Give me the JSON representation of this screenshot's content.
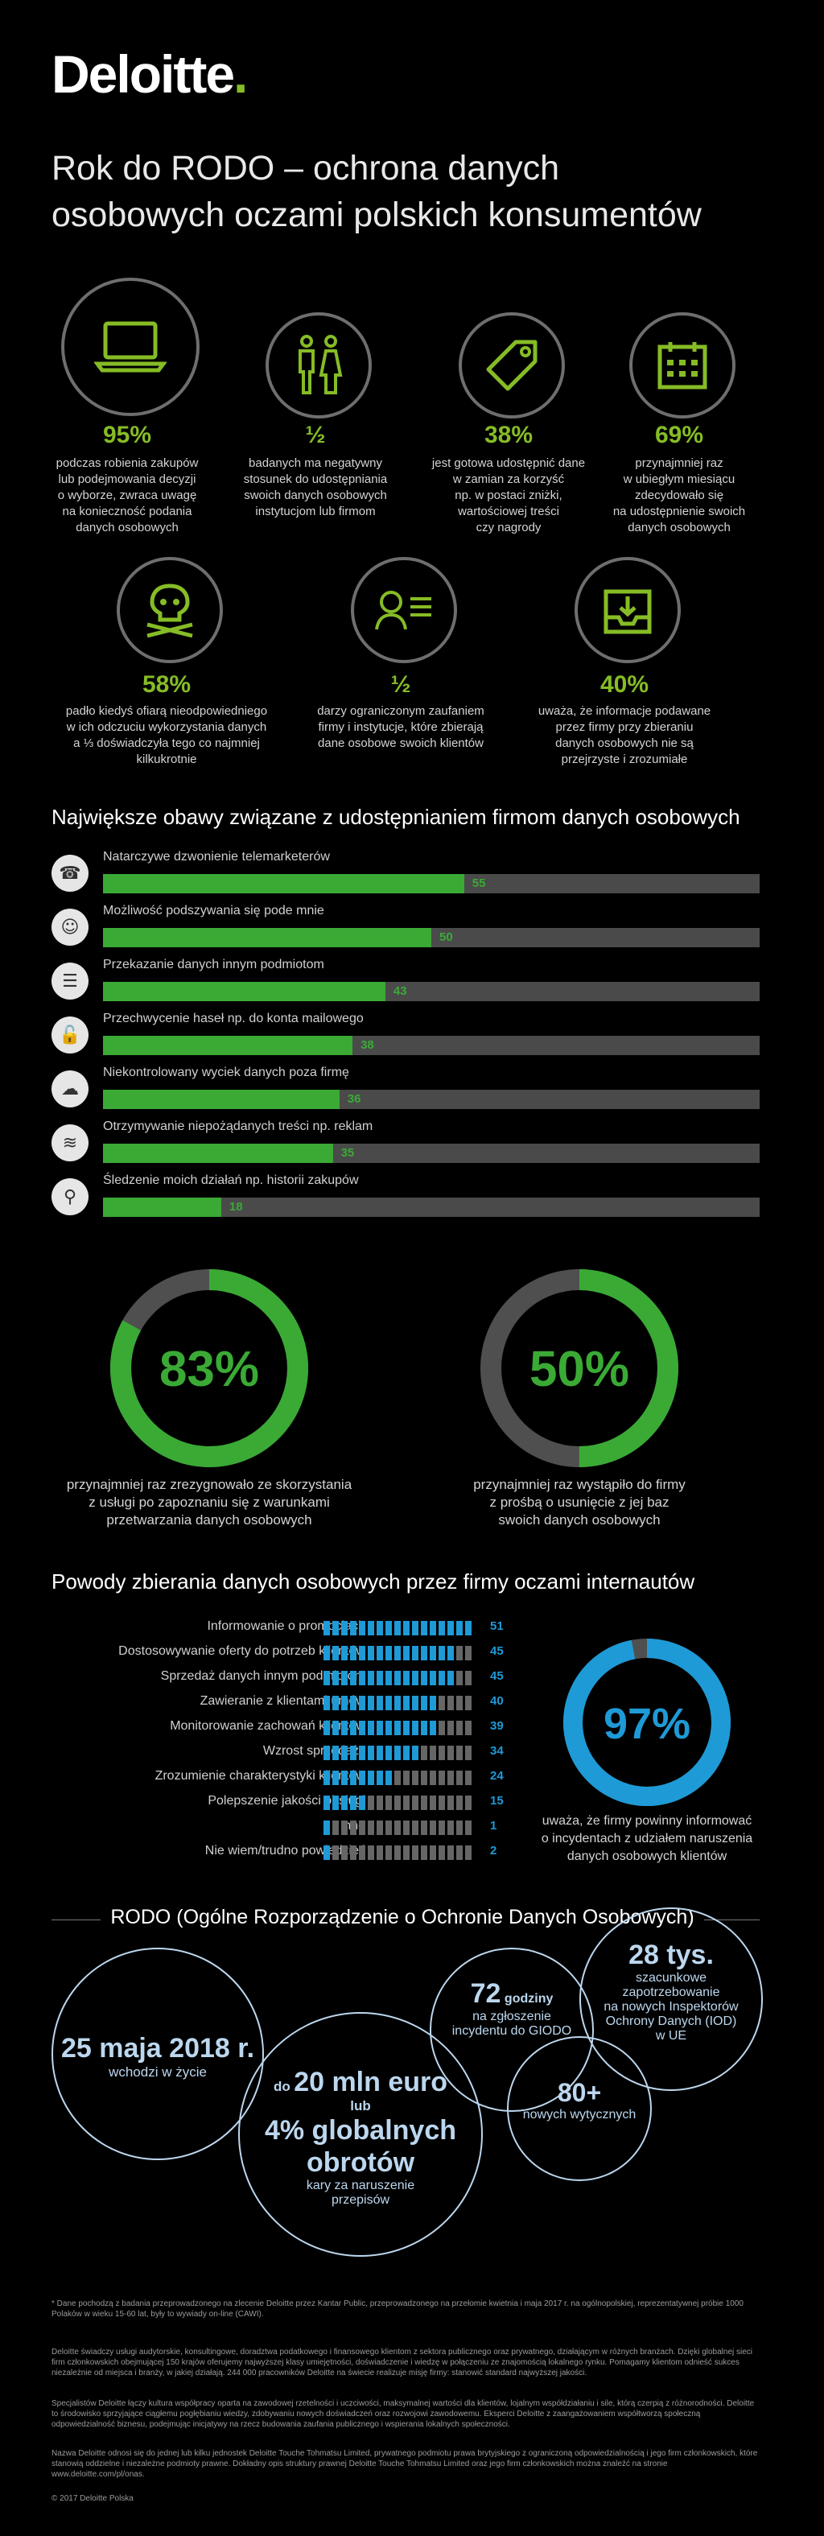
{
  "logo": {
    "text": "Deloitte",
    "dot": "."
  },
  "title": {
    "line1": "Rok do RODO – ochrona danych",
    "line2": "osobowych oczami polskich konsumentów"
  },
  "colors": {
    "green": "#86bc25",
    "bar_green": "#3aaa35",
    "blue": "#1e9ad6",
    "grey": "#4a4a4a"
  },
  "stats_row1": [
    {
      "icon": "laptop-icon",
      "value": "95%",
      "desc": [
        "podczas robienia zakupów",
        "lub podejmowania decyzji",
        "o wyborze, zwraca uwagę",
        "na konieczność podania",
        "danych osobowych"
      ]
    },
    {
      "icon": "people-icon",
      "value": "½",
      "desc": [
        "badanych ma negatywny",
        "stosunek do udostępniania",
        "swoich danych osobowych",
        "instytucjom lub firmom"
      ]
    },
    {
      "icon": "tag-icon",
      "value": "38%",
      "desc": [
        "jest gotowa udostępnić dane",
        "w zamian za korzyść",
        "np. w postaci zniżki,",
        "wartościowej treści",
        "czy nagrody"
      ]
    },
    {
      "icon": "calendar-icon",
      "value": "69%",
      "desc": [
        "przynajmniej raz",
        "w ubiegłym miesiącu",
        "zdecydowało się",
        "na udostępnienie swoich",
        "danych osobowych"
      ]
    }
  ],
  "stats_row2": [
    {
      "icon": "skull-icon",
      "value": "58%",
      "desc": [
        "padło kiedyś ofiarą nieodpowiedniego",
        "w ich odczuciu wykorzystania danych",
        "a  ⅓ doświadczyła tego co najmniej",
        "kilkukrotnie"
      ]
    },
    {
      "icon": "profile-icon",
      "value": "½",
      "desc": [
        "darzy ograniczonym zaufaniem",
        "firmy i instytucje, które zbierają",
        "dane osobowe swoich klientów"
      ]
    },
    {
      "icon": "inbox-icon",
      "value": "40%",
      "desc": [
        "uważa, że informacje podawane",
        "przez firmy przy zbieraniu",
        "danych osobowych nie są",
        "przejrzyste i zrozumiałe"
      ]
    }
  ],
  "concerns": {
    "title": "Największe obawy związane z udostępnianiem firmom danych osobowych",
    "items": [
      {
        "icon": "phone-icon",
        "label": "Natarczywe dzwonienie telemarketerów",
        "value": 55
      },
      {
        "icon": "person-icon",
        "label": "Możliwość podszywania się pode mnie",
        "value": 50
      },
      {
        "icon": "profile-icon",
        "label": "Przekazanie danych innym podmiotom",
        "value": 43
      },
      {
        "icon": "lock-icon",
        "label": "Przechwycenie haseł np. do konta mailowego",
        "value": 38
      },
      {
        "icon": "cloud-icon",
        "label": "Niekontrolowany wyciek danych poza firmę",
        "value": 36
      },
      {
        "icon": "stack-icon",
        "label": "Otrzymywanie niepożądanych treści np. reklam",
        "value": 35
      },
      {
        "icon": "magnifier-icon",
        "label": "Śledzenie moich działań np. historii zakupów",
        "value": 18
      }
    ],
    "max": 100
  },
  "donuts": [
    {
      "value": "83%",
      "fraction": 0.83,
      "desc": [
        "przynajmniej raz zrezygnowało ze skorzystania",
        "z usługi po zapoznaniu się z warunkami",
        "przetwarzania danych osobowych"
      ]
    },
    {
      "value": "50%",
      "fraction": 0.5,
      "desc": [
        "przynajmniej raz wystąpiło do firmy",
        "z prośbą o usunięcie z jej baz",
        "swoich danych osobowych"
      ]
    }
  ],
  "reasons": {
    "title": "Powody zbierania danych osobowych przez firmy oczami internautów",
    "items": [
      {
        "label": "Informowanie o promocjach",
        "value": 51
      },
      {
        "label": "Dostosowywanie oferty do potrzeb klientów",
        "value": 45
      },
      {
        "label": "Sprzedaż danych innym podmiotom",
        "value": 45
      },
      {
        "label": "Zawieranie z klientami umów",
        "value": 40
      },
      {
        "label": "Monitorowanie zachowań klientów",
        "value": 39
      },
      {
        "label": "Wzrost sprzedaży",
        "value": 34
      },
      {
        "label": "Zrozumienie charakterystyki klientów",
        "value": 24
      },
      {
        "label": "Polepszenie jakości obsługi",
        "value": 15
      },
      {
        "label": "Inne",
        "value": 1
      },
      {
        "label": "Nie wiem/trudno powiedzieć",
        "value": 2
      }
    ],
    "donut": {
      "value": "97%",
      "fraction": 0.97,
      "desc": [
        "uważa, że firmy powinny informować",
        "o incydentach z udziałem naruszenia",
        "danych osobowych klientów"
      ]
    }
  },
  "rodo": {
    "title": "RODO (Ogólne Rozporządzenie o Ochronie Danych Osobowych)",
    "b1": {
      "big": "25 maja 2018 r.",
      "small": "wchodzi w życie"
    },
    "b2": {
      "pre": "do",
      "big": "20 mln euro",
      "mid": "lub",
      "big2": "4% globalnych",
      "big3": "obrotów",
      "small1": "kary za naruszenie",
      "small2": "przepisów"
    },
    "b3": {
      "big": "72",
      "unit": "godziny",
      "small1": "na zgłoszenie",
      "small2": "incydentu do GIODO"
    },
    "b4": {
      "big": "80+",
      "small": "nowych wytycznych"
    },
    "b5": {
      "big": "28 tys.",
      "small1": "szacunkowe",
      "small2": "zapotrzebowanie",
      "small3": "na nowych Inspektorów",
      "small4": "Ochrony Danych (IOD)",
      "small5": "w UE"
    }
  },
  "footer": {
    "note": "* Dane pochodzą z badania przeprowadzonego na zlecenie Deloitte przez Kantar Public, przeprowadzonego na przełomie kwietnia i maja 2017 r. na ogólnopolskiej, reprezentatywnej próbie 1000 Polaków w wieku 15-60 lat, były to wywiady on-line (CAWI).",
    "p1": "Deloitte świadczy usługi audytorskie, konsultingowe, doradztwa podatkowego i finansowego klientom z sektora publicznego oraz prywatnego, działającym w różnych branżach. Dzięki globalnej sieci firm członkowskich obejmującej 150 krajów oferujemy najwyższej klasy umiejętności, doświadczenie i wiedzę w połączeniu ze znajomością lokalnego rynku. Pomagamy klientom odnieść sukces niezależnie od miejsca i branży, w jakiej działają. 244 000 pracowników Deloitte na świecie realizuje misję firmy: stanowić standard najwyższej jakości.",
    "p2": "Specjalistów Deloitte łączy kultura współpracy oparta na zawodowej rzetelności i uczciwości, maksymalnej wartości dla klientów, lojalnym współdziałaniu i sile, którą czerpią z różnorodności. Deloitte to środowisko sprzyjające ciągłemu pogłębianiu wiedzy, zdobywaniu nowych doświadczeń oraz rozwojowi zawodowemu. Eksperci Deloitte z zaangażowaniem współtworzą społeczną odpowiedzialność biznesu, podejmując inicjatywy na rzecz budowania zaufania publicznego i wspierania lokalnych społeczności.",
    "p3": "Nazwa Deloitte odnosi się do jednej lub kilku jednostek Deloitte Touche Tohmatsu Limited, prywatnego podmiotu prawa brytyjskiego z ograniczoną odpowiedzialnością i jego firm członkowskich, które stanowią oddzielne i niezależne podmioty prawne. Dokładny opis struktury prawnej Deloitte Touche Tohmatsu Limited oraz jego firm członkowskich można znaleźć na stronie www.deloitte.com/pl/onas.",
    "copyright": "© 2017 Deloitte Polska"
  }
}
